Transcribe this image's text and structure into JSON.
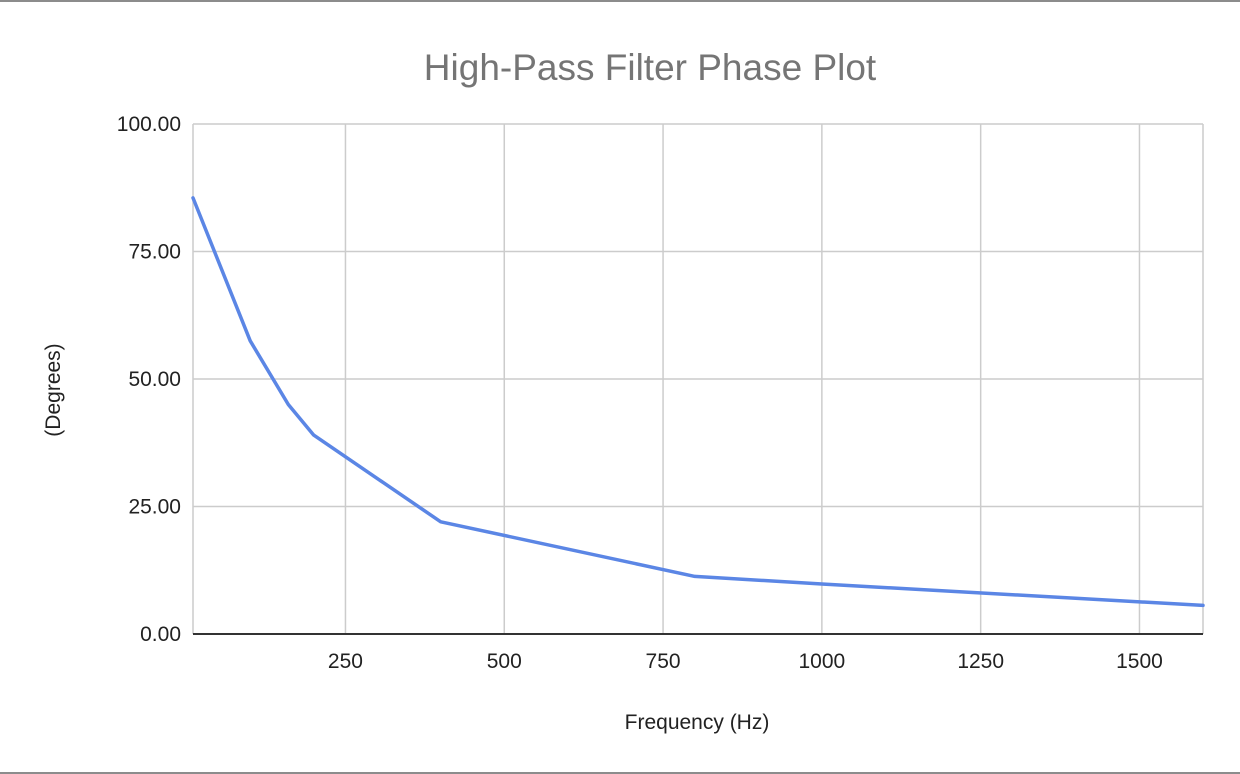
{
  "chart_data": {
    "type": "line",
    "title": "High-Pass Filter Phase Plot",
    "xlabel": "Frequency (Hz)",
    "ylabel": "(Degrees)",
    "xlim": [
      10,
      1600
    ],
    "ylim": [
      0,
      100
    ],
    "x_ticks": [
      250,
      500,
      750,
      1000,
      1250,
      1500
    ],
    "x_tick_labels": [
      "250",
      "500",
      "750",
      "1000",
      "1250",
      "1500"
    ],
    "y_ticks": [
      0,
      25,
      50,
      75,
      100
    ],
    "y_tick_labels": [
      "0.00",
      "25.00",
      "50.00",
      "75.00",
      "100.00"
    ],
    "grid": true,
    "legend": "none",
    "series": [
      {
        "color": "#5b86e5",
        "x": [
          10,
          100,
          160,
          200,
          400,
          800,
          1000,
          1600
        ],
        "y": [
          85.5,
          57.5,
          45,
          39,
          22,
          11.3,
          9.8,
          5.6
        ]
      }
    ]
  }
}
